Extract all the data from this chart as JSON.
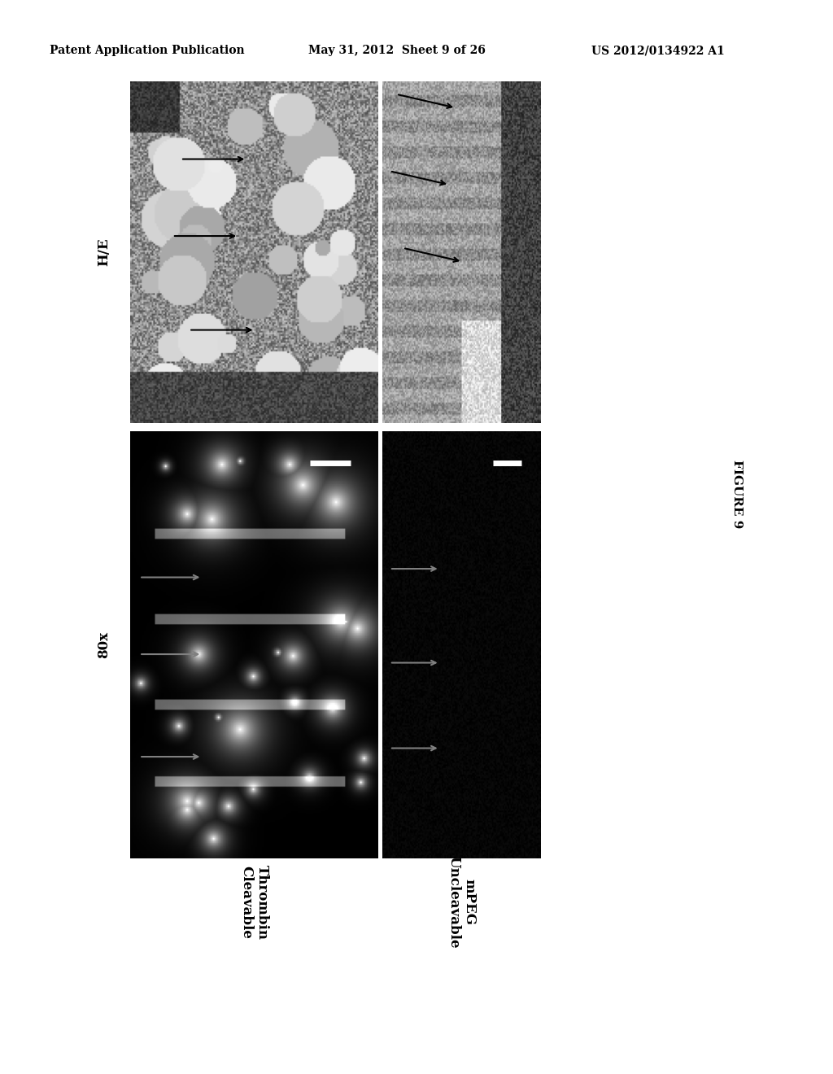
{
  "header_left": "Patent Application Publication",
  "header_mid": "May 31, 2012  Sheet 9 of 26",
  "header_right": "US 2012/0134922 A1",
  "figure_label": "FIGURE 9",
  "row_labels": [
    "H/E",
    "80x"
  ],
  "col_labels": [
    "Thrombin\nCleavable",
    "mPEG\nUncleavable"
  ],
  "background_color": "#ffffff",
  "header_fontsize": 10,
  "figure_label_fontsize": 11,
  "row_label_fontsize": 12,
  "col_label_fontsize": 12
}
